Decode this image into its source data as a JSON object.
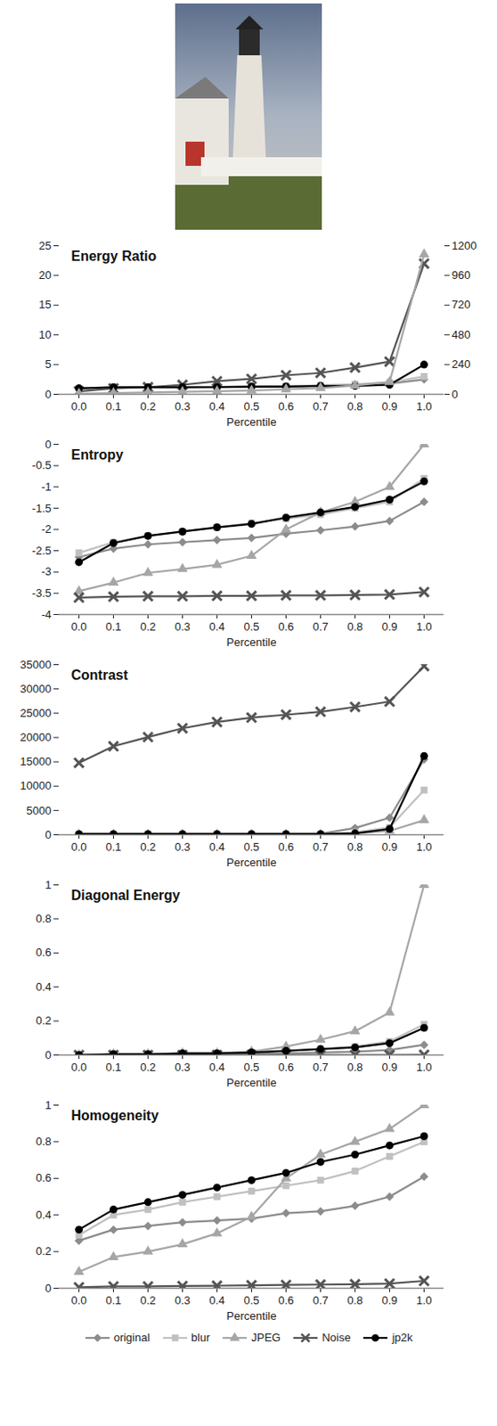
{
  "chart_data": [
    {
      "type": "line",
      "title": "Energy Ratio",
      "xlabel": "Percentile",
      "x": [
        "0.0",
        "0.1",
        "0.2",
        "0.3",
        "0.4",
        "0.5",
        "0.6",
        "0.7",
        "0.8",
        "0.9",
        "1.0"
      ],
      "ylim": [
        0,
        25
      ],
      "yticks": [
        0,
        5,
        10,
        15,
        20,
        25
      ],
      "y2lim": [
        0,
        1200
      ],
      "y2ticks": [
        0,
        240,
        480,
        720,
        960,
        1200
      ],
      "series": [
        {
          "name": "original",
          "color": "#8c8c8c",
          "marker": "diamond",
          "values": [
            1,
            1.1,
            1.1,
            1.1,
            1.2,
            1.2,
            1.3,
            1.4,
            1.6,
            1.8,
            2.5
          ]
        },
        {
          "name": "blur",
          "color": "#c0c0c0",
          "marker": "square",
          "values": [
            1,
            1.1,
            1.2,
            1.2,
            1.2,
            1.3,
            1.4,
            1.5,
            1.7,
            2,
            3
          ]
        },
        {
          "name": "JPEG",
          "color": "#a6a6a6",
          "marker": "triangle",
          "axis": "y2",
          "values": [
            5,
            10,
            15,
            20,
            25,
            30,
            40,
            50,
            70,
            100,
            1130
          ]
        },
        {
          "name": "Noise",
          "color": "#555555",
          "marker": "x",
          "values": [
            0.5,
            1,
            1.2,
            1.6,
            2.2,
            2.6,
            3.2,
            3.6,
            4.5,
            5.5,
            22
          ]
        },
        {
          "name": "jp2k",
          "color": "#000000",
          "marker": "circle",
          "values": [
            1,
            1.2,
            1.2,
            1.2,
            1.2,
            1.3,
            1.3,
            1.4,
            1.4,
            1.6,
            5
          ]
        }
      ]
    },
    {
      "type": "line",
      "title": "Entropy",
      "xlabel": "Percentile",
      "x": [
        "0.0",
        "0.1",
        "0.2",
        "0.3",
        "0.4",
        "0.5",
        "0.6",
        "0.7",
        "0.8",
        "0.9",
        "1.0"
      ],
      "ylim": [
        -4,
        0
      ],
      "yticks": [
        -4,
        -3.5,
        -3,
        -2.5,
        -2,
        -1.5,
        -1,
        -0.5,
        0
      ],
      "series": [
        {
          "name": "original",
          "color": "#8c8c8c",
          "marker": "diamond",
          "values": [
            -2.65,
            -2.45,
            -2.35,
            -2.3,
            -2.25,
            -2.2,
            -2.1,
            -2.02,
            -1.93,
            -1.8,
            -1.35
          ]
        },
        {
          "name": "blur",
          "color": "#c0c0c0",
          "marker": "square",
          "values": [
            -2.55,
            -2.3,
            -2.15,
            -2.05,
            -1.95,
            -1.85,
            -1.75,
            -1.65,
            -1.5,
            -1.35,
            -0.8
          ]
        },
        {
          "name": "JPEG",
          "color": "#a6a6a6",
          "marker": "triangle",
          "values": [
            -3.45,
            -3.25,
            -3.02,
            -2.93,
            -2.83,
            -2.62,
            -2,
            -1.6,
            -1.35,
            -1,
            0
          ]
        },
        {
          "name": "Noise",
          "color": "#555555",
          "marker": "x",
          "values": [
            -3.6,
            -3.58,
            -3.57,
            -3.57,
            -3.56,
            -3.56,
            -3.55,
            -3.55,
            -3.54,
            -3.53,
            -3.47
          ]
        },
        {
          "name": "jp2k",
          "color": "#000000",
          "marker": "circle",
          "values": [
            -2.77,
            -2.32,
            -2.15,
            -2.05,
            -1.95,
            -1.87,
            -1.72,
            -1.6,
            -1.47,
            -1.3,
            -0.87
          ]
        }
      ]
    },
    {
      "type": "line",
      "title": "Contrast",
      "xlabel": "Percentile",
      "x": [
        "0.0",
        "0.1",
        "0.2",
        "0.3",
        "0.4",
        "0.5",
        "0.6",
        "0.7",
        "0.8",
        "0.9",
        "1.0"
      ],
      "ylim": [
        0,
        35000
      ],
      "yticks": [
        0,
        5000,
        10000,
        15000,
        20000,
        25000,
        30000,
        35000
      ],
      "series": [
        {
          "name": "original",
          "color": "#8c8c8c",
          "marker": "diamond",
          "values": [
            200,
            200,
            200,
            200,
            200,
            200,
            200,
            200,
            1400,
            3500,
            15500
          ]
        },
        {
          "name": "blur",
          "color": "#c0c0c0",
          "marker": "square",
          "values": [
            100,
            100,
            100,
            100,
            100,
            100,
            100,
            100,
            500,
            1500,
            9200
          ]
        },
        {
          "name": "JPEG",
          "color": "#a6a6a6",
          "marker": "triangle",
          "values": [
            50,
            50,
            50,
            50,
            50,
            50,
            50,
            50,
            300,
            800,
            3000
          ]
        },
        {
          "name": "Noise",
          "color": "#555555",
          "marker": "x",
          "values": [
            14800,
            18200,
            20100,
            21900,
            23200,
            24100,
            24700,
            25300,
            26300,
            27400,
            34700
          ]
        },
        {
          "name": "jp2k",
          "color": "#000000",
          "marker": "circle",
          "values": [
            150,
            150,
            150,
            150,
            150,
            150,
            150,
            150,
            300,
            1200,
            16200
          ]
        }
      ]
    },
    {
      "type": "line",
      "title": "Diagonal Energy",
      "xlabel": "Percentile",
      "x": [
        "0.0",
        "0.1",
        "0.2",
        "0.3",
        "0.4",
        "0.5",
        "0.6",
        "0.7",
        "0.8",
        "0.9",
        "1.0"
      ],
      "ylim": [
        0,
        1
      ],
      "yticks": [
        0,
        0.2,
        0.4,
        0.6,
        0.8,
        1
      ],
      "series": [
        {
          "name": "original",
          "color": "#8c8c8c",
          "marker": "diamond",
          "values": [
            0,
            0,
            0,
            0,
            0,
            0.01,
            0.01,
            0.015,
            0.02,
            0.03,
            0.06
          ]
        },
        {
          "name": "blur",
          "color": "#c0c0c0",
          "marker": "square",
          "values": [
            0,
            0.005,
            0.005,
            0.01,
            0.01,
            0.015,
            0.025,
            0.035,
            0.05,
            0.08,
            0.18
          ]
        },
        {
          "name": "JPEG",
          "color": "#a6a6a6",
          "marker": "triangle",
          "values": [
            0,
            0.005,
            0.005,
            0.01,
            0.01,
            0.02,
            0.05,
            0.09,
            0.14,
            0.25,
            1
          ]
        },
        {
          "name": "Noise",
          "color": "#555555",
          "marker": "x",
          "values": [
            0,
            0,
            0,
            0,
            0,
            0,
            0,
            0,
            0,
            0,
            0.001
          ]
        },
        {
          "name": "jp2k",
          "color": "#000000",
          "marker": "circle",
          "values": [
            0,
            0.005,
            0.005,
            0.01,
            0.01,
            0.015,
            0.025,
            0.035,
            0.045,
            0.07,
            0.16
          ]
        }
      ]
    },
    {
      "type": "line",
      "title": "Homogeneity",
      "xlabel": "Percentile",
      "x": [
        "0.0",
        "0.1",
        "0.2",
        "0.3",
        "0.4",
        "0.5",
        "0.6",
        "0.7",
        "0.8",
        "0.9",
        "1.0"
      ],
      "ylim": [
        0,
        1
      ],
      "yticks": [
        0,
        0.2,
        0.4,
        0.6,
        0.8,
        1
      ],
      "legend": "bottom",
      "series": [
        {
          "name": "original",
          "color": "#8c8c8c",
          "marker": "diamond",
          "values": [
            0.26,
            0.32,
            0.34,
            0.36,
            0.37,
            0.38,
            0.41,
            0.42,
            0.45,
            0.5,
            0.61
          ]
        },
        {
          "name": "blur",
          "color": "#c0c0c0",
          "marker": "square",
          "values": [
            0.29,
            0.4,
            0.43,
            0.47,
            0.5,
            0.53,
            0.56,
            0.59,
            0.64,
            0.72,
            0.8
          ]
        },
        {
          "name": "JPEG",
          "color": "#a6a6a6",
          "marker": "triangle",
          "values": [
            0.09,
            0.17,
            0.2,
            0.24,
            0.3,
            0.39,
            0.6,
            0.73,
            0.8,
            0.87,
            1
          ]
        },
        {
          "name": "Noise",
          "color": "#555555",
          "marker": "x",
          "values": [
            0.005,
            0.01,
            0.01,
            0.012,
            0.014,
            0.016,
            0.018,
            0.02,
            0.022,
            0.025,
            0.04
          ]
        },
        {
          "name": "jp2k",
          "color": "#000000",
          "marker": "circle",
          "values": [
            0.32,
            0.43,
            0.47,
            0.51,
            0.55,
            0.59,
            0.63,
            0.69,
            0.73,
            0.78,
            0.83
          ]
        }
      ]
    }
  ]
}
